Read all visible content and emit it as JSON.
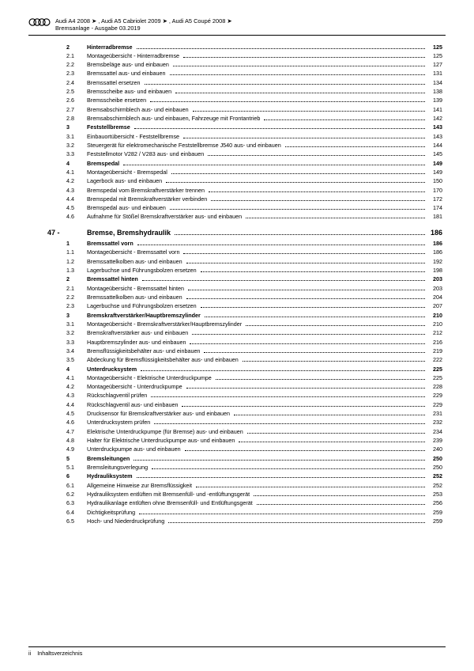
{
  "header": {
    "line1": "Audi A4 2008 ➤ , Audi A5 Cabriolet 2009 ➤ , Audi A5 Coupé 2008 ➤",
    "line2": "Bremsanlage - Ausgabe 03.2019"
  },
  "chapter": {
    "num": "47 -",
    "title": "Bremse, Bremshydraulik",
    "page": "186"
  },
  "sections_a": [
    {
      "num": "2",
      "title": "Hinterradbremse",
      "page": "125",
      "bold": true
    },
    {
      "num": "2.1",
      "title": "Montageübersicht - Hinterradbremse",
      "page": "125"
    },
    {
      "num": "2.2",
      "title": "Bremsbeläge aus- und einbauen",
      "page": "127"
    },
    {
      "num": "2.3",
      "title": "Bremssattel aus- und einbauen",
      "page": "131"
    },
    {
      "num": "2.4",
      "title": "Bremssattel ersetzen",
      "page": "134"
    },
    {
      "num": "2.5",
      "title": "Bremsscheibe aus- und einbauen",
      "page": "138"
    },
    {
      "num": "2.6",
      "title": "Bremsscheibe ersetzen",
      "page": "139"
    },
    {
      "num": "2.7",
      "title": "Bremsabschirmblech aus- und einbauen",
      "page": "141"
    },
    {
      "num": "2.8",
      "title": "Bremsabschirmblech aus- und einbauen, Fahrzeuge mit Frontantrieb",
      "page": "142"
    },
    {
      "num": "3",
      "title": "Feststellbremse",
      "page": "143",
      "bold": true
    },
    {
      "num": "3.1",
      "title": "Einbauortübersicht - Feststellbremse",
      "page": "143"
    },
    {
      "num": "3.2",
      "title": "Steuergerät für elektromechanische Feststellbremse J540 aus- und einbauen",
      "page": "144"
    },
    {
      "num": "3.3",
      "title": "Feststellmotor V282 / V283 aus- und einbauen",
      "page": "145"
    },
    {
      "num": "4",
      "title": "Bremspedal",
      "page": "149",
      "bold": true
    },
    {
      "num": "4.1",
      "title": "Montageübersicht - Bremspedal",
      "page": "149"
    },
    {
      "num": "4.2",
      "title": "Lagerbock aus- und einbauen",
      "page": "150"
    },
    {
      "num": "4.3",
      "title": "Bremspedal vom Bremskraftverstärker trennen",
      "page": "170"
    },
    {
      "num": "4.4",
      "title": "Bremspedal mit Bremskraftverstärker verbinden",
      "page": "172"
    },
    {
      "num": "4.5",
      "title": "Bremspedal aus- und einbauen",
      "page": "174"
    },
    {
      "num": "4.6",
      "title": "Aufnahme für Stößel Bremskraftverstärker aus- und einbauen",
      "page": "181"
    }
  ],
  "sections_b": [
    {
      "num": "1",
      "title": "Bremssattel vorn",
      "page": "186",
      "bold": true
    },
    {
      "num": "1.1",
      "title": "Montageübersicht - Bremssattel vorn",
      "page": "186"
    },
    {
      "num": "1.2",
      "title": "Bremssattelkolben aus- und einbauen",
      "page": "192"
    },
    {
      "num": "1.3",
      "title": "Lagerbuchse und Führungsbolzen ersetzen",
      "page": "198"
    },
    {
      "num": "2",
      "title": "Bremssattel hinten",
      "page": "203",
      "bold": true
    },
    {
      "num": "2.1",
      "title": "Montageübersicht - Bremssattel hinten",
      "page": "203"
    },
    {
      "num": "2.2",
      "title": "Bremssattelkolben aus- und einbauen",
      "page": "204"
    },
    {
      "num": "2.3",
      "title": "Lagerbuchse und Führungsbolzen ersetzen",
      "page": "207"
    },
    {
      "num": "3",
      "title": "Bremskraftverstärker/Hauptbremszylinder",
      "page": "210",
      "bold": true
    },
    {
      "num": "3.1",
      "title": "Montageübersicht - Bremskraftverstärker/Hauptbremszylinder",
      "page": "210"
    },
    {
      "num": "3.2",
      "title": "Bremskraftverstärker aus- und einbauen",
      "page": "212"
    },
    {
      "num": "3.3",
      "title": "Hauptbremszylinder aus- und einbauen",
      "page": "216"
    },
    {
      "num": "3.4",
      "title": "Bremsflüssigkeitsbehälter aus- und einbauen",
      "page": "219"
    },
    {
      "num": "3.5",
      "title": "Abdeckung für Bremsflüssigkeitsbehälter aus- und einbauen",
      "page": "222"
    },
    {
      "num": "4",
      "title": "Unterdrucksystem",
      "page": "225",
      "bold": true
    },
    {
      "num": "4.1",
      "title": "Montageübersicht - Elektrische Unterdruckpumpe",
      "page": "225"
    },
    {
      "num": "4.2",
      "title": "Montageübersicht - Unterdruckpumpe",
      "page": "228"
    },
    {
      "num": "4.3",
      "title": "Rückschlagventil prüfen",
      "page": "229"
    },
    {
      "num": "4.4",
      "title": "Rückschlagventil aus- und einbauen",
      "page": "229"
    },
    {
      "num": "4.5",
      "title": "Drucksensor für Bremskraftverstärker aus- und einbauen",
      "page": "231"
    },
    {
      "num": "4.6",
      "title": "Unterdrucksystem prüfen",
      "page": "232"
    },
    {
      "num": "4.7",
      "title": "Elektrische Unterdruckpumpe (für Bremse) aus- und einbauen",
      "page": "234"
    },
    {
      "num": "4.8",
      "title": "Halter für Elektrische Unterdruckpumpe aus- und einbauen",
      "page": "239"
    },
    {
      "num": "4.9",
      "title": "Unterdruckpumpe aus- und einbauen",
      "page": "240"
    },
    {
      "num": "5",
      "title": "Bremsleitungen",
      "page": "250",
      "bold": true
    },
    {
      "num": "5.1",
      "title": "Bremsleitungsverlegung",
      "page": "250"
    },
    {
      "num": "6",
      "title": "Hydrauliksystem",
      "page": "252",
      "bold": true
    },
    {
      "num": "6.1",
      "title": "Allgemeine Hinweise zur Bremsflüssigkeit",
      "page": "252"
    },
    {
      "num": "6.2",
      "title": "Hydrauliksystem entlüften mit Bremsenfüll- und -entlüftungsgerät",
      "page": "253"
    },
    {
      "num": "6.3",
      "title": "Hydraulikanlage entlüften ohne Bremsenfüll- und Entlüftungsgerät",
      "page": "256"
    },
    {
      "num": "6.4",
      "title": "Dichtigkeitsprüfung",
      "page": "259"
    },
    {
      "num": "6.5",
      "title": "Hoch- und Niederdruckprüfung",
      "page": "259"
    }
  ],
  "footer": {
    "page_num": "ii",
    "label": "Inhaltsverzeichnis"
  }
}
